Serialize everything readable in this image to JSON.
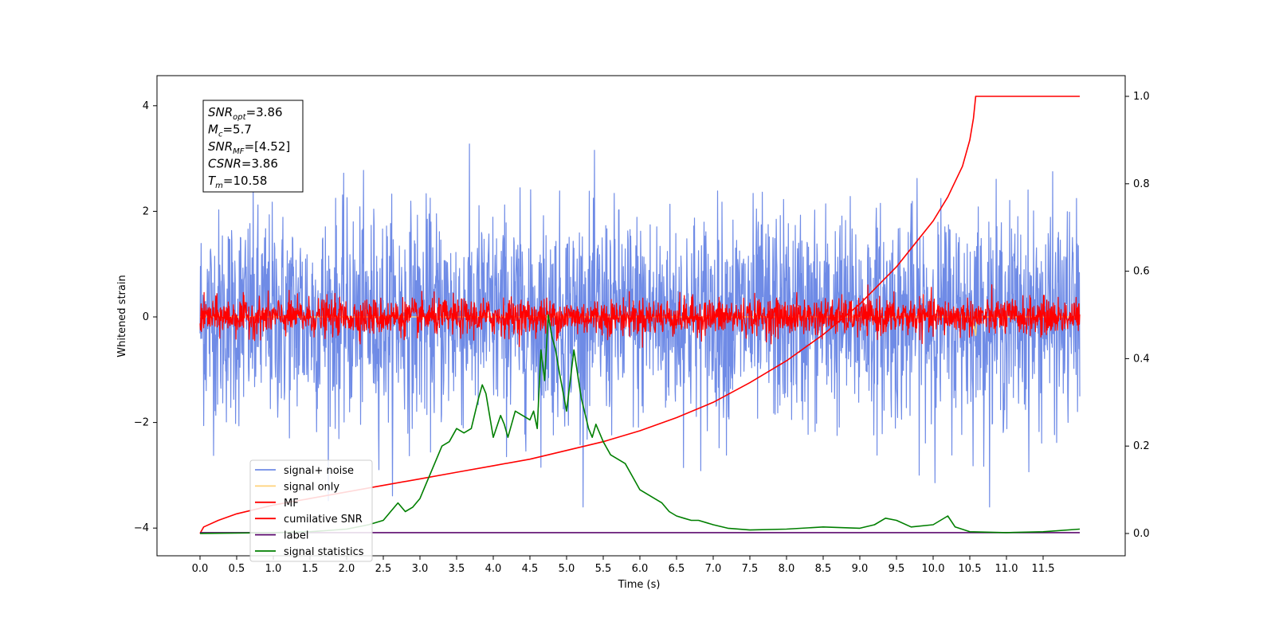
{
  "chart_data": {
    "type": "line",
    "xlabel": "Time (s)",
    "ylabel": "Whitened strain",
    "xlim": [
      -0.6,
      12.6
    ],
    "ylim": [
      -4.6,
      4.6
    ],
    "y2lim": [
      -0.05,
      1.05
    ],
    "xticks": [
      "0.0",
      "0.5",
      "1.0",
      "1.5",
      "2.0",
      "2.5",
      "3.0",
      "3.5",
      "4.0",
      "4.5",
      "5.0",
      "5.5",
      "6.0",
      "6.5",
      "7.0",
      "7.5",
      "8.0",
      "8.5",
      "9.0",
      "9.5",
      "10.0",
      "10.5",
      "11.0",
      "11.5"
    ],
    "yticks": [
      "4",
      "2",
      "0",
      "−2",
      "−4"
    ],
    "y2ticks": [
      "1.0",
      "0.8",
      "0.6",
      "0.4",
      "0.2",
      "0.0"
    ],
    "annotation": {
      "lines": [
        {
          "base": "SNR",
          "sub": "opt",
          "value": "=3.86"
        },
        {
          "base": "M",
          "sub": "c",
          "value": "=5.7"
        },
        {
          "base": "SNR",
          "sub": "MF",
          "value": "=[4.52]"
        },
        {
          "base": "CSNR",
          "sub": "",
          "value": "=3.86"
        },
        {
          "base": "T",
          "sub": "m",
          "value": "=10.58"
        }
      ]
    },
    "legend": {
      "placement": "lower-left",
      "entries": [
        {
          "label": "signal+ noise",
          "color": "#6f8be6"
        },
        {
          "label": "signal only",
          "color": "#ffd27a"
        },
        {
          "label": "MF",
          "color": "#ff0000"
        },
        {
          "label": "cumilative SNR",
          "color": "#ff0000"
        },
        {
          "label": "label",
          "color": "#5b0a6e"
        },
        {
          "label": "signal statistics",
          "color": "#007f00"
        }
      ]
    },
    "series": [
      {
        "name": "signal+ noise",
        "axis": "left",
        "color": "#6f8be6",
        "kind": "noise",
        "x_range": [
          0,
          12.0
        ],
        "center": 0.0,
        "amplitude_std": 1.0
      },
      {
        "name": "signal only",
        "axis": "left",
        "color": "#ffd27a",
        "x": [
          0,
          10.5,
          10.55,
          10.58,
          10.6,
          12.0
        ],
        "values": [
          0,
          0,
          -0.15,
          -0.35,
          0,
          0
        ]
      },
      {
        "name": "MF",
        "axis": "left",
        "color": "#ff0000",
        "kind": "noise",
        "x_range": [
          0,
          12.0
        ],
        "center": 0.0,
        "amplitude_std": 0.17
      },
      {
        "name": "cumilative SNR",
        "axis": "right",
        "x": [
          0.0,
          0.05,
          0.25,
          0.5,
          1.0,
          1.5,
          2.0,
          2.5,
          3.0,
          3.5,
          4.0,
          4.5,
          5.0,
          5.5,
          6.0,
          6.5,
          7.0,
          7.5,
          8.0,
          8.5,
          9.0,
          9.5,
          10.0,
          10.2,
          10.4,
          10.5,
          10.55,
          10.58,
          12.0
        ],
        "values": [
          0.0,
          0.015,
          0.03,
          0.045,
          0.065,
          0.08,
          0.095,
          0.11,
          0.125,
          0.14,
          0.155,
          0.17,
          0.19,
          0.21,
          0.235,
          0.265,
          0.3,
          0.345,
          0.395,
          0.455,
          0.525,
          0.61,
          0.715,
          0.77,
          0.84,
          0.9,
          0.95,
          1.0,
          1.0
        ]
      },
      {
        "name": "label",
        "axis": "right",
        "color": "#5b0a6e",
        "x": [
          0,
          12.0
        ],
        "values": [
          0.002,
          0.002
        ]
      },
      {
        "name": "signal statistics",
        "axis": "right",
        "x": [
          0.0,
          0.5,
          1.0,
          1.5,
          2.0,
          2.3,
          2.5,
          2.6,
          2.7,
          2.8,
          2.9,
          3.0,
          3.1,
          3.2,
          3.3,
          3.4,
          3.5,
          3.6,
          3.7,
          3.8,
          3.85,
          3.9,
          4.0,
          4.1,
          4.15,
          4.2,
          4.3,
          4.4,
          4.5,
          4.55,
          4.6,
          4.65,
          4.7,
          4.75,
          4.8,
          4.85,
          4.9,
          5.0,
          5.05,
          5.1,
          5.2,
          5.3,
          5.35,
          5.4,
          5.5,
          5.6,
          5.7,
          5.8,
          5.9,
          6.0,
          6.1,
          6.2,
          6.3,
          6.4,
          6.5,
          6.6,
          6.7,
          6.8,
          7.0,
          7.2,
          7.5,
          8.0,
          8.5,
          9.0,
          9.2,
          9.35,
          9.5,
          9.7,
          10.0,
          10.1,
          10.2,
          10.3,
          10.5,
          11.0,
          11.5,
          12.0
        ],
        "values": [
          0.0,
          0.001,
          0.002,
          0.004,
          0.01,
          0.02,
          0.03,
          0.05,
          0.07,
          0.05,
          0.06,
          0.08,
          0.12,
          0.16,
          0.2,
          0.21,
          0.24,
          0.23,
          0.24,
          0.31,
          0.34,
          0.32,
          0.22,
          0.27,
          0.25,
          0.22,
          0.28,
          0.27,
          0.26,
          0.28,
          0.24,
          0.42,
          0.35,
          0.5,
          0.45,
          0.42,
          0.37,
          0.28,
          0.35,
          0.42,
          0.31,
          0.24,
          0.22,
          0.25,
          0.21,
          0.18,
          0.17,
          0.16,
          0.13,
          0.1,
          0.09,
          0.08,
          0.07,
          0.05,
          0.04,
          0.035,
          0.03,
          0.03,
          0.02,
          0.012,
          0.008,
          0.01,
          0.015,
          0.012,
          0.02,
          0.035,
          0.03,
          0.015,
          0.02,
          0.03,
          0.04,
          0.015,
          0.004,
          0.002,
          0.004,
          0.01
        ]
      }
    ]
  }
}
